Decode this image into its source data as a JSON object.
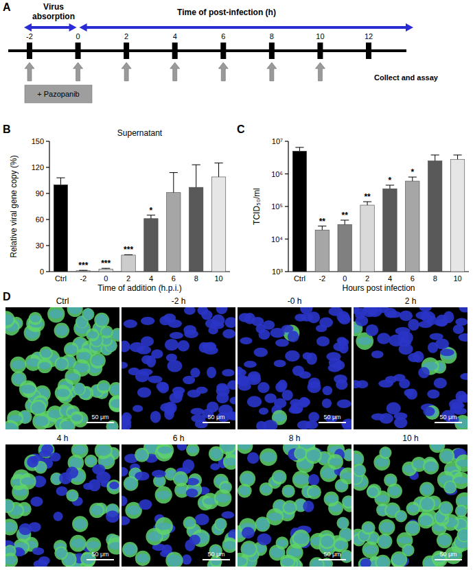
{
  "panel_labels": [
    "A",
    "B",
    "C",
    "D"
  ],
  "diagram": {
    "phase_left": "Virus absorption",
    "phase_right": "Time of post-infection (h)",
    "timeline_ticks": [
      -2,
      0,
      2,
      4,
      6,
      8,
      10,
      12
    ],
    "addition_times": [
      -2,
      0,
      2,
      4,
      6,
      8,
      10
    ],
    "collect_label": "Collect and assay",
    "treatment_label": "+ Pazopanib"
  },
  "chart_data": [
    {
      "type": "bar",
      "title": "Supernatant",
      "x_label": "Time of addition (h.p.i.)",
      "y_label": "Relative viral gene copy (%)",
      "categories": [
        "Ctrl",
        "-2",
        "0",
        "2",
        "4",
        "6",
        "8",
        "10"
      ],
      "values": [
        100,
        1,
        3,
        19,
        61,
        91,
        97,
        109
      ],
      "errors": [
        8,
        0.5,
        0.8,
        0.5,
        4,
        23,
        26,
        16
      ],
      "significance": [
        null,
        "***",
        "***",
        "***",
        "*",
        null,
        null,
        null
      ],
      "colors": [
        "#000000",
        "#b3b3b3",
        "#d9d9d9",
        "#cccccc",
        "#595959",
        "#a6a6a6",
        "#595959",
        "#e6e6e6"
      ],
      "ylim": [
        0,
        150
      ],
      "yticks": [
        0,
        30,
        60,
        90,
        120,
        150
      ]
    },
    {
      "type": "bar",
      "log": "y",
      "x_label": "Hours post infection",
      "y_label": "TCID₅₀/ml",
      "categories": [
        "Ctrl",
        "-2",
        "0",
        "2",
        "4",
        "6",
        "8",
        "10"
      ],
      "values": [
        5000000,
        19000,
        28000,
        110000,
        350000,
        600000,
        2500000,
        2800000
      ],
      "errors": [
        1500000,
        6000,
        10000,
        30000,
        100000,
        200000,
        1300000,
        1000000
      ],
      "significance": [
        null,
        "**",
        "**",
        "**",
        "*",
        "*",
        null,
        null
      ],
      "colors": [
        "#000000",
        "#a6a6a6",
        "#808080",
        "#d9d9d9",
        "#595959",
        "#a6a6a6",
        "#595959",
        "#e6e6e6"
      ],
      "ylim": [
        1000,
        10000000
      ],
      "yticks": [
        {
          "value": 1000,
          "label": "10³"
        },
        {
          "value": 10000,
          "label": "10⁴"
        },
        {
          "value": 100000,
          "label": "10⁵"
        },
        {
          "value": 1000000,
          "label": "10⁶"
        },
        {
          "value": 10000000,
          "label": "10⁷"
        }
      ]
    }
  ],
  "images": {
    "panels": [
      {
        "title": "Ctrl",
        "scale_bar": "50 μm"
      },
      {
        "title": "-2 h",
        "scale_bar": "50 μm"
      },
      {
        "title": "-0 h",
        "scale_bar": "50 μm"
      },
      {
        "title": "2 h",
        "scale_bar": "50 μm"
      },
      {
        "title": "4 h",
        "scale_bar": "50 μm"
      },
      {
        "title": "6 h",
        "scale_bar": "50 μm"
      },
      {
        "title": "8 h",
        "scale_bar": "50 μm"
      },
      {
        "title": "10 h",
        "scale_bar": "50 μm"
      }
    ]
  }
}
